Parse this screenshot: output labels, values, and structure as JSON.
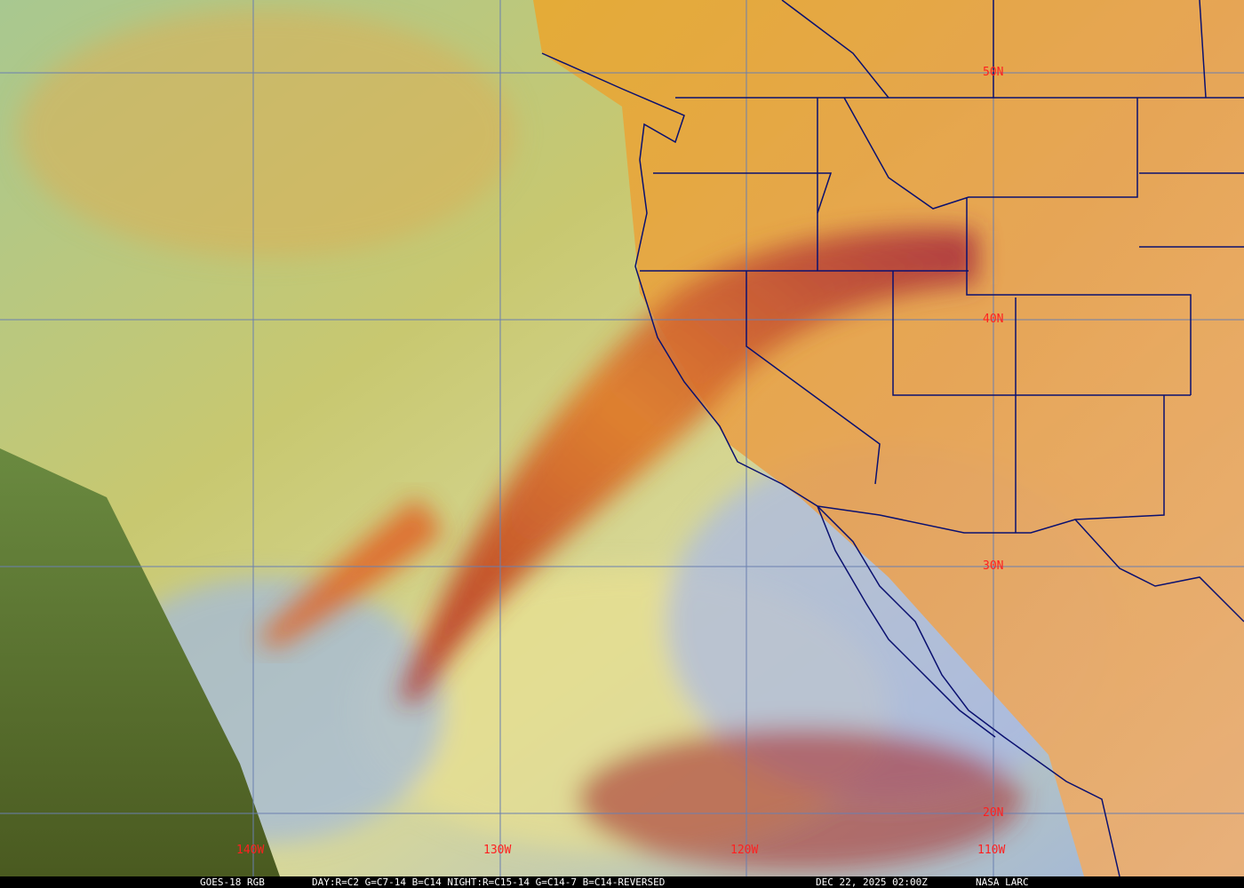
{
  "map": {
    "satellite": "GOES-18 RGB",
    "product": "DAY:R=C2 G=C7-14 B=C14 NIGHT:R=C15-14 G=C14-7 B=C14-REVERSED",
    "timestamp": "DEC 22, 2025 02:00Z",
    "credit": "NASA LARC",
    "latitude_labels": [
      "50N",
      "40N",
      "30N",
      "20N"
    ],
    "longitude_labels": [
      "140W",
      "130W",
      "120W",
      "110W"
    ],
    "colors": {
      "gridline": "#6a7fb0",
      "borders": "#0a1070",
      "label": "#ff2020",
      "ocean_clear": "#9cb4e0",
      "cloud_high": "#c23a2a",
      "cloud_mid": "#e89a30",
      "low_cloud": "#e8d070",
      "night_side": "#4a6a20"
    }
  }
}
